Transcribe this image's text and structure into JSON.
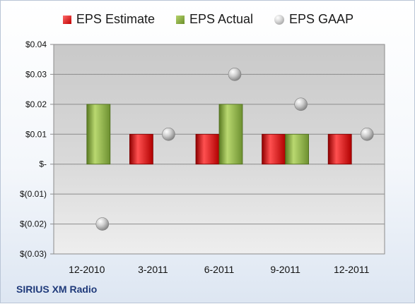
{
  "company": "SIRIUS XM Radio",
  "chart_data": {
    "type": "bar",
    "categories": [
      "12-2010",
      "3-2011",
      "6-2011",
      "9-2011",
      "12-2011"
    ],
    "series": [
      {
        "name": "EPS Estimate",
        "kind": "bar",
        "color": "#c00000",
        "values": [
          null,
          0.01,
          0.01,
          0.01,
          0.01
        ]
      },
      {
        "name": "EPS Actual",
        "kind": "bar",
        "color": "#77933c",
        "values": [
          0.02,
          null,
          0.02,
          0.01,
          null
        ]
      },
      {
        "name": "EPS GAAP",
        "kind": "marker",
        "color": "#a6a6a6",
        "values": [
          -0.02,
          0.01,
          0.03,
          0.02,
          0.01
        ]
      }
    ],
    "ylim": [
      -0.03,
      0.04
    ],
    "yticks": [
      {
        "value": 0.04,
        "label": "$0.04"
      },
      {
        "value": 0.03,
        "label": "$0.03"
      },
      {
        "value": 0.02,
        "label": "$0.02"
      },
      {
        "value": 0.01,
        "label": "$0.01"
      },
      {
        "value": 0,
        "label": "$-"
      },
      {
        "value": -0.01,
        "label": "$(0.01)"
      },
      {
        "value": -0.02,
        "label": "$(0.02)"
      },
      {
        "value": -0.03,
        "label": "$(0.03)"
      }
    ],
    "grid": true,
    "legend": "top"
  }
}
